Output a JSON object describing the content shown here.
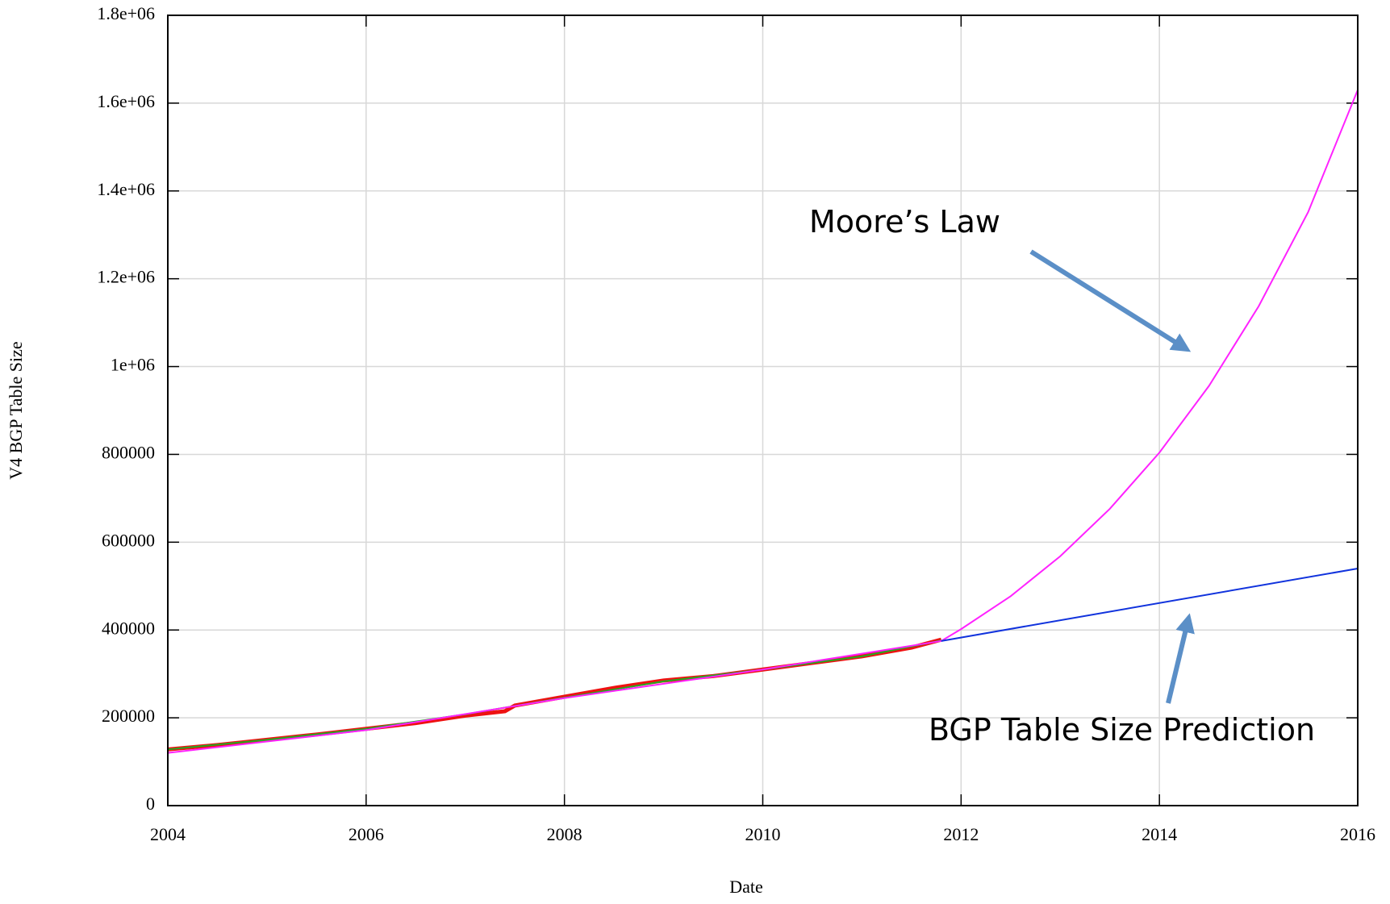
{
  "chart_data": {
    "type": "line",
    "xlabel": "Date",
    "ylabel": "V4 BGP Table Size",
    "xlim": [
      2004,
      2016
    ],
    "xticks": [
      2004,
      2006,
      2008,
      2010,
      2012,
      2014,
      2016
    ],
    "ylim": [
      0,
      1800000
    ],
    "yticks": [
      0,
      200000,
      400000,
      600000,
      800000,
      {
        "value": 1000000,
        "label": "1e+06"
      },
      {
        "value": 1200000,
        "label": "1.2e+06"
      },
      {
        "value": 1400000,
        "label": "1.4e+06"
      },
      {
        "value": 1600000,
        "label": "1.6e+06"
      },
      {
        "value": 1800000,
        "label": "1.8e+06"
      }
    ],
    "grid": true,
    "series": [
      {
        "color": "#ee1111",
        "x": [
          2004,
          2004.5,
          2005,
          2005.5,
          2006,
          2006.5,
          2007,
          2007.4,
          2007.5,
          2008,
          2008.5,
          2009,
          2009.5,
          2010,
          2010.5,
          2011,
          2011.5,
          2011.8
        ],
        "values": [
          128000,
          138000,
          150000,
          162000,
          175000,
          188000,
          205000,
          215000,
          228000,
          248000,
          268000,
          285000,
          295000,
          310000,
          325000,
          340000,
          360000,
          378000
        ]
      },
      {
        "color": "#22aa22",
        "x": [
          2004,
          2005,
          2006,
          2007,
          2008,
          2009,
          2010,
          2011,
          2011.8
        ],
        "values": [
          128000,
          150000,
          175000,
          208000,
          246000,
          283000,
          310000,
          340000,
          376000
        ]
      },
      {
        "color": "#ff22ff",
        "x": [
          2004,
          2006,
          2008,
          2010,
          2011.8,
          2012,
          2012.5,
          2013,
          2013.5,
          2014,
          2014.5,
          2015,
          2015.5,
          2016
        ],
        "values": [
          120000,
          172000,
          245000,
          310000,
          375000,
          402000,
          477000,
          568000,
          676000,
          804000,
          956000,
          1137000,
          1352000,
          1630000
        ]
      },
      {
        "color": "#1133dd",
        "x": [
          2011.8,
          2016
        ],
        "values": [
          375000,
          540000
        ]
      }
    ],
    "annotations": [
      "Moore’s Law",
      "BGP Table Size Prediction"
    ]
  }
}
